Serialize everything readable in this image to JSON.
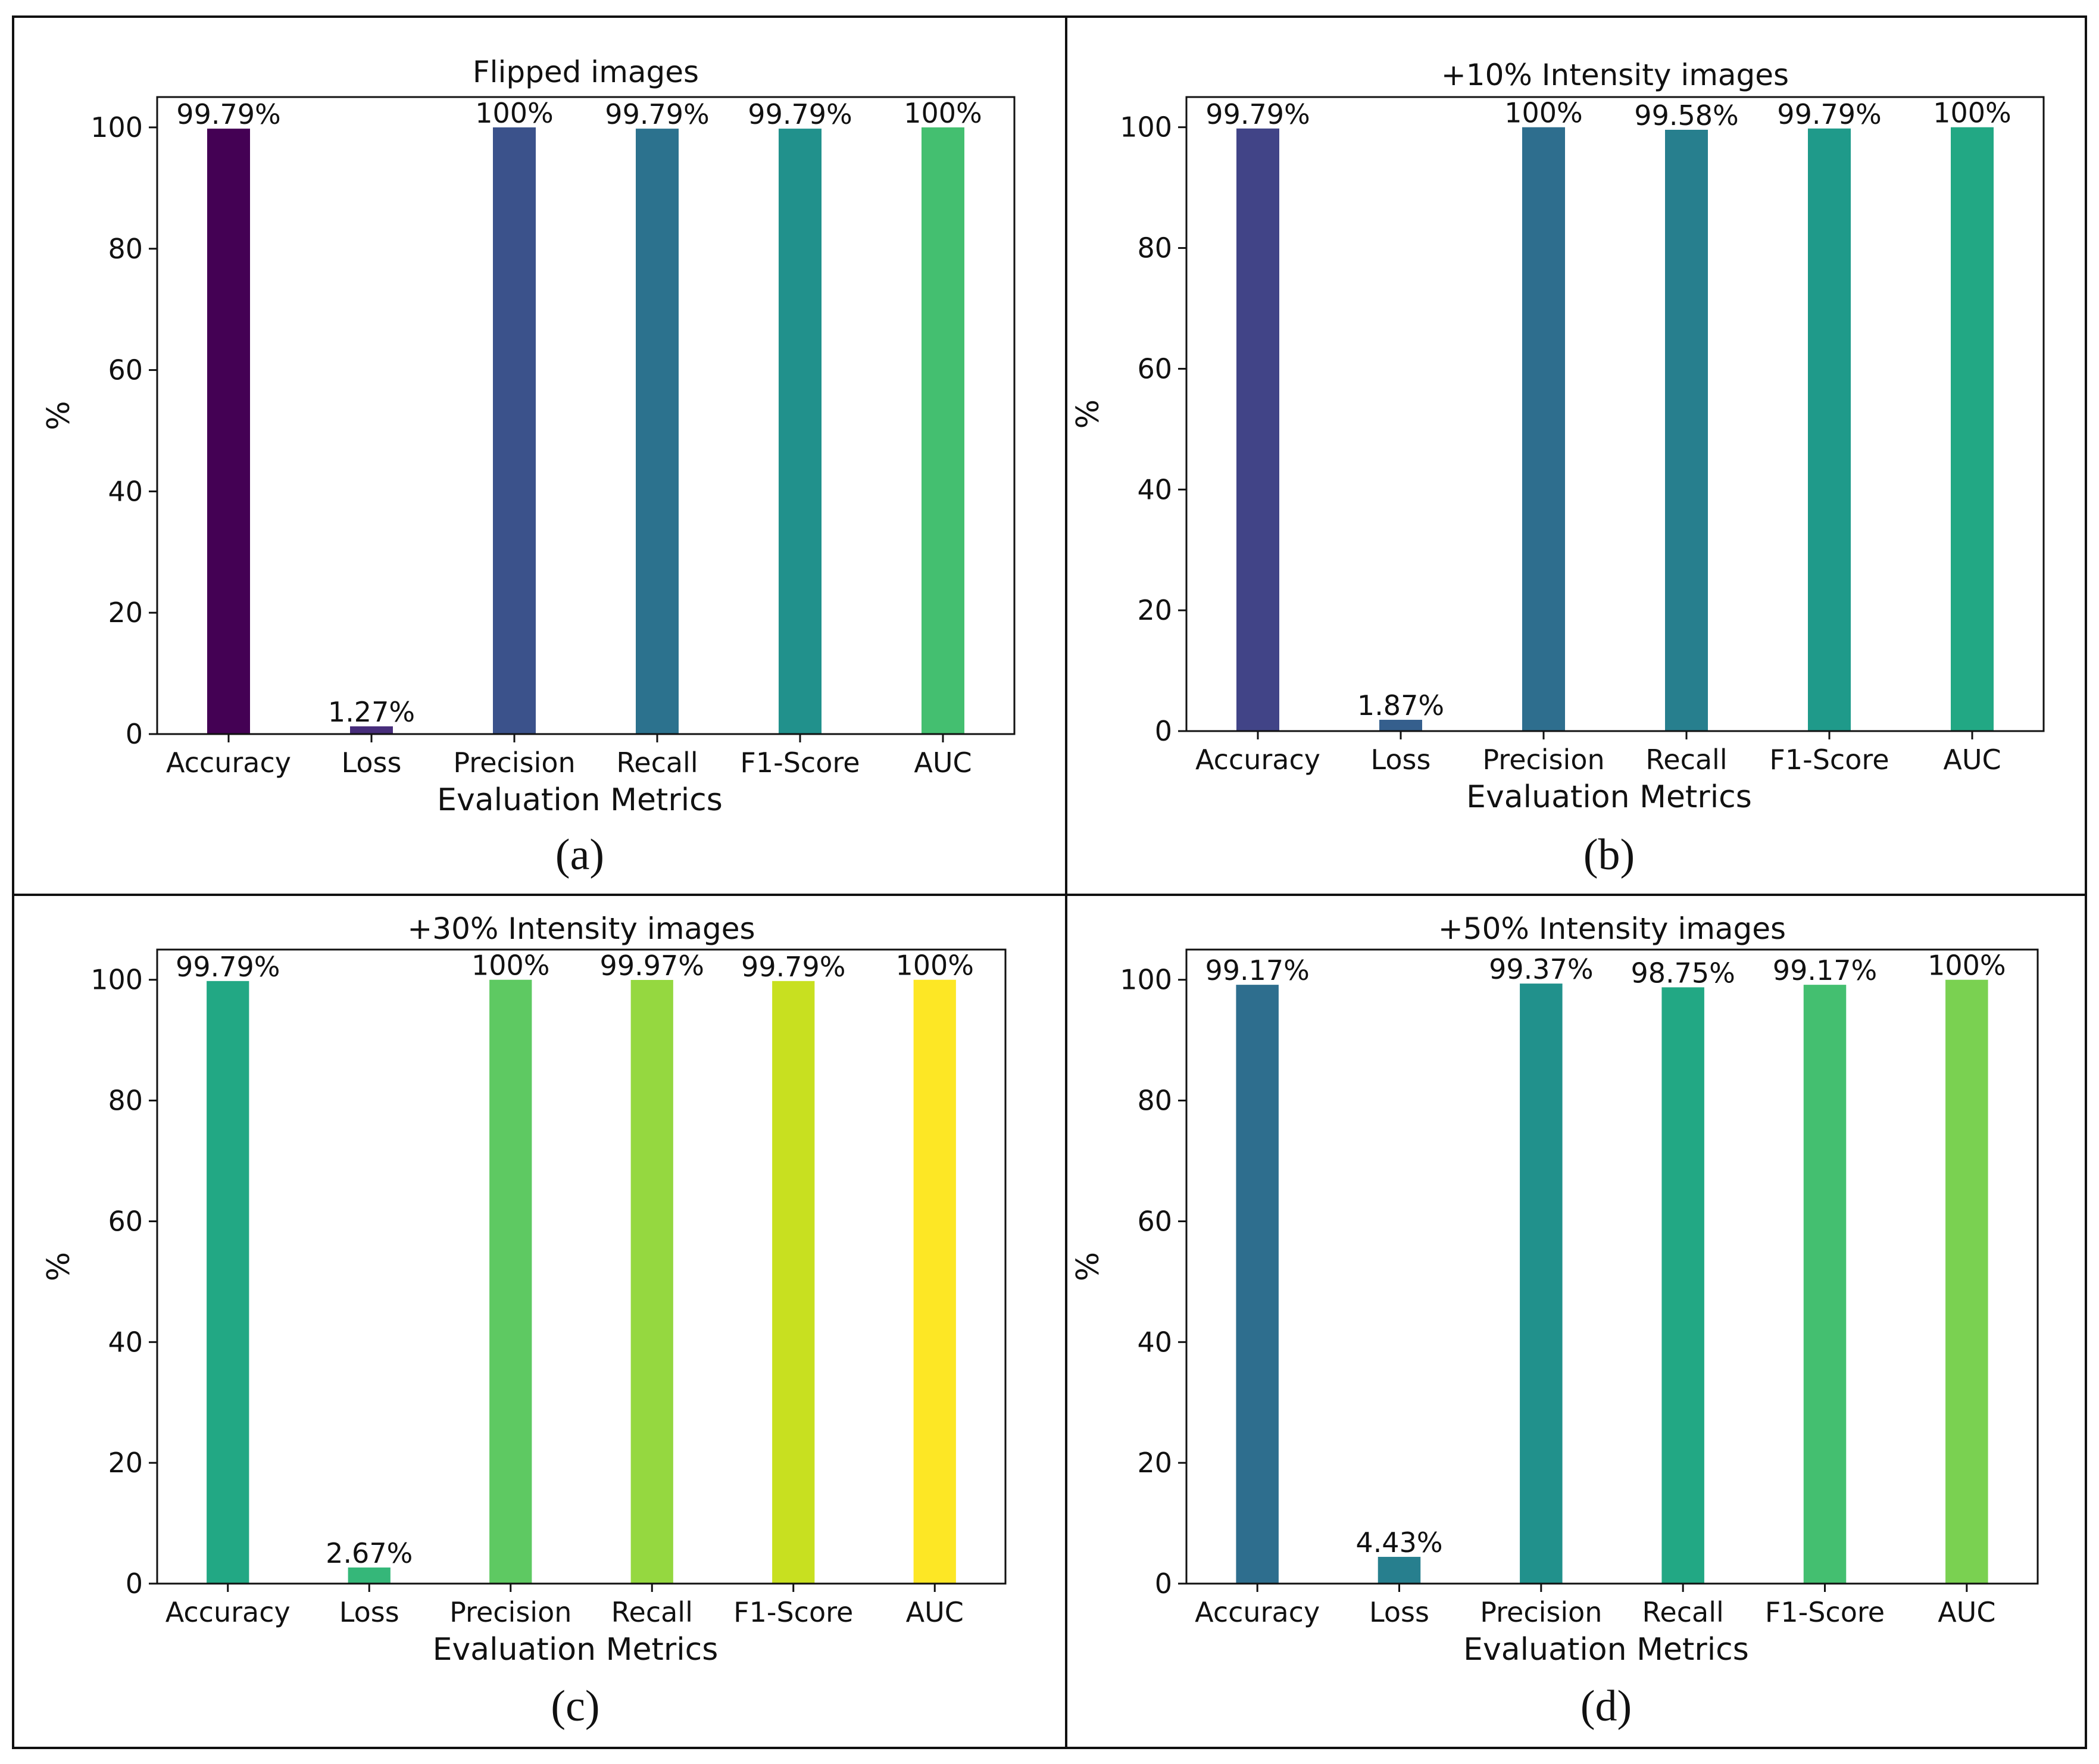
{
  "chart_data": [
    {
      "type": "bar",
      "panel": "(a)",
      "title": "Flipped images",
      "xlabel": "Evaluation Metrics",
      "ylabel": "%",
      "ylim": [
        0,
        105
      ],
      "yticks": [
        0,
        20,
        40,
        60,
        80,
        100
      ],
      "categories": [
        "Accuracy",
        "Loss",
        "Precision",
        "Recall",
        "F1-Score",
        "AUC"
      ],
      "values": [
        99.79,
        1.27,
        100,
        99.79,
        99.79,
        100
      ],
      "value_labels": [
        "99.79%",
        "1.27%",
        "100%",
        "99.79%",
        "99.79%",
        "100%"
      ],
      "colors": [
        "#440154",
        "#472d7b",
        "#3b528b",
        "#2c728e",
        "#21918c",
        "#44bf70"
      ]
    },
    {
      "type": "bar",
      "panel": "(b)",
      "title": "+10% Intensity images",
      "xlabel": "Evaluation Metrics",
      "ylabel": "%",
      "ylim": [
        0,
        105
      ],
      "yticks": [
        0,
        20,
        40,
        60,
        80,
        100
      ],
      "categories": [
        "Accuracy",
        "Loss",
        "Precision",
        "Recall",
        "F1-Score",
        "AUC"
      ],
      "values": [
        99.79,
        1.87,
        100,
        99.58,
        99.79,
        100
      ],
      "value_labels": [
        "99.79%",
        "1.87%",
        "100%",
        "99.58%",
        "99.79%",
        "100%"
      ],
      "colors": [
        "#414487",
        "#355f8d",
        "#2e6e8e",
        "#277f8e",
        "#1f9a8a",
        "#22a884"
      ]
    },
    {
      "type": "bar",
      "panel": "(c)",
      "title": "+30% Intensity images",
      "xlabel": "Evaluation Metrics",
      "ylabel": "%",
      "ylim": [
        0,
        105
      ],
      "yticks": [
        0,
        20,
        40,
        60,
        80,
        100
      ],
      "categories": [
        "Accuracy",
        "Loss",
        "Precision",
        "Recall",
        "F1-Score",
        "AUC"
      ],
      "values": [
        99.79,
        2.67,
        100,
        99.97,
        99.79,
        100
      ],
      "value_labels": [
        "99.79%",
        "2.67%",
        "100%",
        "99.97%",
        "99.79%",
        "100%"
      ],
      "colors": [
        "#22a884",
        "#35b779",
        "#5ec962",
        "#95d840",
        "#c8e020",
        "#fde725"
      ]
    },
    {
      "type": "bar",
      "panel": "(d)",
      "title": "+50% Intensity images",
      "xlabel": "Evaluation Metrics",
      "ylabel": "%",
      "ylim": [
        0,
        105
      ],
      "yticks": [
        0,
        20,
        40,
        60,
        80,
        100
      ],
      "categories": [
        "Accuracy",
        "Loss",
        "Precision",
        "Recall",
        "F1-Score",
        "AUC"
      ],
      "values": [
        99.17,
        4.43,
        99.37,
        98.75,
        99.17,
        100
      ],
      "value_labels": [
        "99.17%",
        "4.43%",
        "99.37%",
        "98.75%",
        "99.17%",
        "100%"
      ],
      "colors": [
        "#2e6e8e",
        "#277f8e",
        "#21918c",
        "#22a884",
        "#44bf70",
        "#7ad151"
      ]
    }
  ]
}
